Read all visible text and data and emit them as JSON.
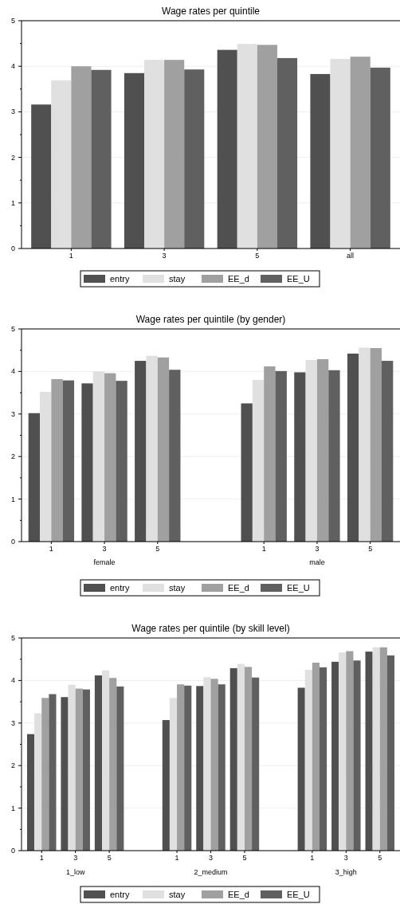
{
  "chart_data": [
    {
      "type": "bar",
      "title": "Wage rates per quintile",
      "categories": [
        "1",
        "3",
        "5",
        "all"
      ],
      "series": [
        {
          "name": "entry",
          "color": "#505050",
          "values": [
            3.16,
            3.85,
            4.36,
            3.83
          ]
        },
        {
          "name": "stay",
          "color": "#e0e0e0",
          "values": [
            3.69,
            4.14,
            4.49,
            4.16
          ]
        },
        {
          "name": "EE_d",
          "color": "#a0a0a0",
          "values": [
            4.0,
            4.14,
            4.47,
            4.21
          ]
        },
        {
          "name": "EE_U",
          "color": "#606060",
          "values": [
            3.92,
            3.93,
            4.18,
            3.97
          ]
        }
      ],
      "ylim": [
        0,
        5
      ],
      "yticks": [
        0,
        {
          "value": 0.5,
          "label": null
        },
        1,
        {
          "value": 1.5,
          "label": null
        },
        2,
        {
          "value": 2.5,
          "label": null
        },
        3,
        {
          "value": 3.5,
          "label": null
        },
        4,
        {
          "value": 4.5,
          "label": null
        },
        5
      ],
      "grid": "y",
      "legend": "bottom"
    },
    {
      "type": "bar",
      "title": "Wage rates per quintile (by gender)",
      "categories": [
        "1",
        "3",
        "5",
        null,
        "1",
        "3",
        "5"
      ],
      "series": [
        {
          "name": "entry",
          "color": "#505050",
          "values": [
            3.02,
            3.72,
            4.25,
            null,
            3.25,
            3.98,
            4.42
          ]
        },
        {
          "name": "stay",
          "color": "#e0e0e0",
          "values": [
            3.52,
            4.0,
            4.37,
            null,
            3.8,
            4.27,
            4.56
          ]
        },
        {
          "name": "EE_d",
          "color": "#a0a0a0",
          "values": [
            3.82,
            3.96,
            4.33,
            null,
            4.12,
            4.29,
            4.55
          ]
        },
        {
          "name": "EE_U",
          "color": "#606060",
          "values": [
            3.79,
            3.78,
            4.04,
            null,
            4.01,
            4.03,
            4.25
          ]
        }
      ],
      "annotations": [
        "female",
        "male"
      ],
      "ylim": [
        0,
        5
      ],
      "yticks": [
        0,
        {
          "value": 0.5,
          "label": null
        },
        1,
        {
          "value": 1.5,
          "label": null
        },
        2,
        {
          "value": 2.5,
          "label": null
        },
        3,
        {
          "value": 3.5,
          "label": null
        },
        4,
        {
          "value": 4.5,
          "label": null
        },
        5
      ],
      "grid": "y",
      "legend": "bottom"
    },
    {
      "type": "bar",
      "title": "Wage rates per quintile (by skill level)",
      "categories": [
        "1",
        "3",
        "5",
        null,
        "1",
        "3",
        "5",
        null,
        "1",
        "3",
        "5"
      ],
      "series": [
        {
          "name": "entry",
          "color": "#505050",
          "values": [
            2.74,
            3.61,
            4.12,
            null,
            3.07,
            3.87,
            4.29,
            null,
            3.83,
            4.44,
            4.68
          ]
        },
        {
          "name": "stay",
          "color": "#e0e0e0",
          "values": [
            3.23,
            3.9,
            4.24,
            null,
            3.59,
            4.08,
            4.39,
            null,
            4.25,
            4.66,
            4.78
          ]
        },
        {
          "name": "EE_d",
          "color": "#a0a0a0",
          "values": [
            3.59,
            3.81,
            4.06,
            null,
            3.91,
            4.04,
            4.32,
            null,
            4.42,
            4.69,
            4.78
          ]
        },
        {
          "name": "EE_U",
          "color": "#606060",
          "values": [
            3.68,
            3.79,
            3.86,
            null,
            3.88,
            3.91,
            4.07,
            null,
            4.31,
            4.47,
            4.59
          ]
        }
      ],
      "annotations": [
        "1_low",
        "2_medium",
        "3_high"
      ],
      "ylim": [
        0,
        5
      ],
      "yticks": [
        0,
        {
          "value": 0.5,
          "label": null
        },
        1,
        {
          "value": 1.5,
          "label": null
        },
        2,
        {
          "value": 2.5,
          "label": null
        },
        3,
        {
          "value": 3.5,
          "label": null
        },
        4,
        {
          "value": 4.5,
          "label": null
        },
        5
      ],
      "grid": "y",
      "legend": "bottom"
    }
  ]
}
